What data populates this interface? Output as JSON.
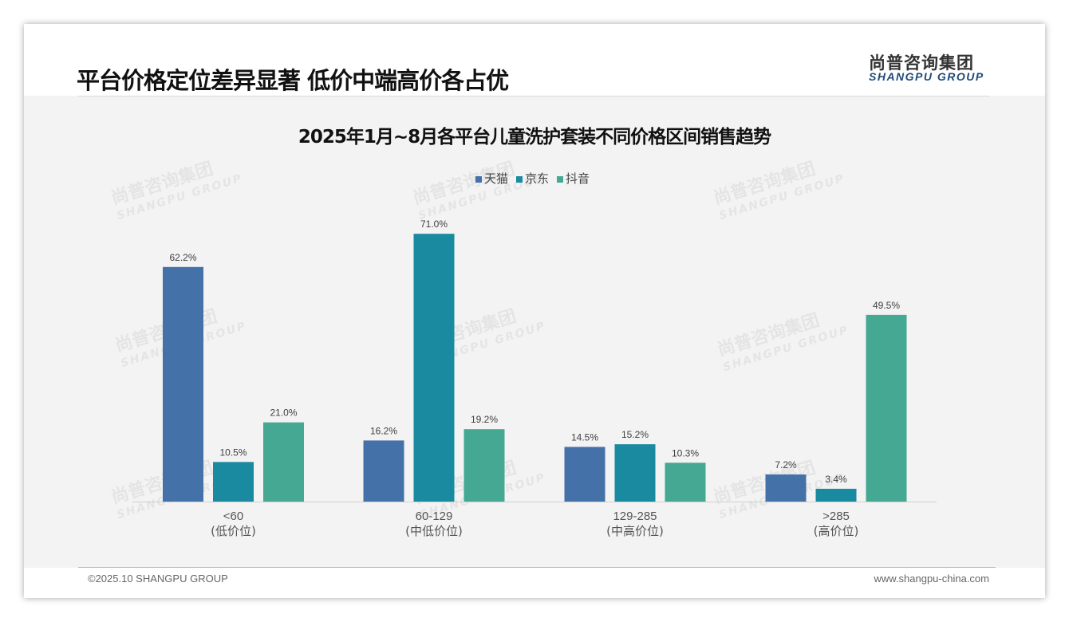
{
  "header": {
    "title": "平台价格定位差异显著 低价中端高价各占优",
    "logo_cn": "尚普咨询集团",
    "logo_en": "SHANGPU GROUP"
  },
  "watermark": {
    "cn": "尚普咨询集团",
    "en": "SHANGPU GROUP"
  },
  "chart_data": {
    "type": "bar",
    "title": "2025年1月~8月各平台儿童洗护套装不同价格区间销售趋势",
    "categories": [
      "<60",
      "60-129",
      "129-285",
      ">285"
    ],
    "category_sublabels": [
      "(低价位)",
      "(中低价位)",
      "(中高价位)",
      "(高价位)"
    ],
    "series": [
      {
        "name": "天猫",
        "color": "#4472a8",
        "values": [
          62.2,
          16.2,
          14.5,
          7.2
        ]
      },
      {
        "name": "京东",
        "color": "#1a8aa0",
        "values": [
          10.5,
          71.0,
          15.2,
          3.4
        ]
      },
      {
        "name": "抖音",
        "color": "#45a892",
        "values": [
          21.0,
          19.2,
          10.3,
          49.5
        ]
      }
    ],
    "unit": "%",
    "ylim": [
      0,
      80
    ],
    "grid": false,
    "legend": "top-center"
  },
  "footer": {
    "copyright": "©2025.10 SHANGPU GROUP",
    "url": "www.shangpu-china.com"
  }
}
